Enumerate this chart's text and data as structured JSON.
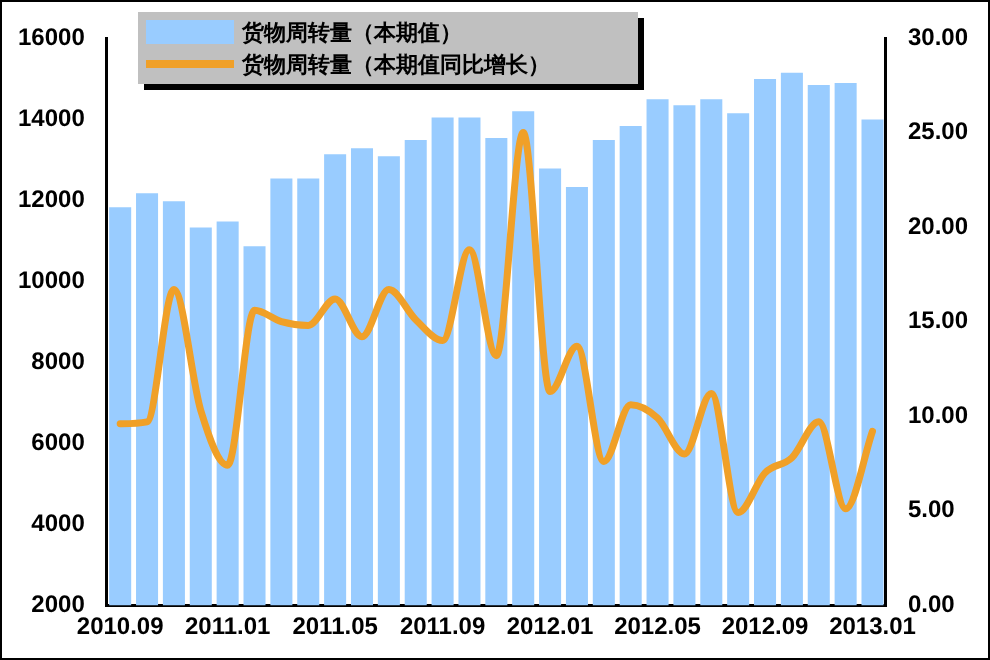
{
  "chart_data": {
    "type": "bar",
    "categories": [
      "2010.09",
      null,
      null,
      null,
      "2011.01",
      null,
      null,
      null,
      "2011.05",
      null,
      null,
      null,
      "2011.09",
      null,
      null,
      null,
      "2012.01",
      null,
      null,
      null,
      "2012.05",
      null,
      null,
      null,
      "2012.09",
      null,
      null,
      null,
      "2013.01"
    ],
    "series": [
      {
        "name": "货物周转量（本期值）",
        "color": "#99ccff",
        "values": [
          11820,
          12170,
          11970,
          11320,
          11470,
          10860,
          12530,
          12530,
          13130,
          13280,
          13080,
          13480,
          14040,
          14040,
          13530,
          14190,
          12780,
          12320,
          13480,
          13830,
          14490,
          14340,
          14490,
          14140,
          14990,
          15140,
          14840,
          14890,
          13990
        ]
      },
      {
        "name": "货物周转量（本期值同比增长）",
        "type": "line",
        "axis": "y2",
        "color": "#f0a028",
        "values": [
          9.6,
          9.7,
          16.7,
          10.3,
          7.4,
          15.6,
          15.0,
          14.8,
          16.2,
          14.2,
          16.7,
          15.1,
          14.0,
          18.8,
          13.2,
          25.0,
          11.3,
          13.7,
          7.6,
          10.6,
          9.9,
          8.0,
          11.2,
          4.9,
          7.0,
          7.8,
          9.7,
          5.1,
          9.2
        ]
      }
    ],
    "ylim": [
      2000,
      16000
    ],
    "yticks": [
      2000,
      4000,
      6000,
      8000,
      10000,
      12000,
      14000,
      16000
    ],
    "y2lim": [
      0,
      30
    ],
    "y2ticks": [
      {
        "value": 0,
        "label": "0.00"
      },
      {
        "value": 5,
        "label": "5.00"
      },
      {
        "value": 10,
        "label": "10.00"
      },
      {
        "value": 15,
        "label": "15.00"
      },
      {
        "value": 20,
        "label": "20.00"
      },
      {
        "value": 25,
        "label": "25.00"
      },
      {
        "value": 30,
        "label": "30.00"
      }
    ],
    "grid": false,
    "legend": "top left",
    "marker": "none",
    "line_style": "solid"
  }
}
